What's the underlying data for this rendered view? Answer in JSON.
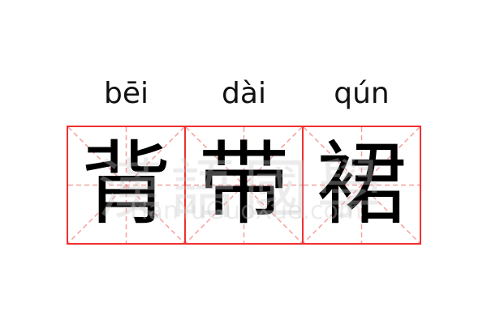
{
  "pinyin": [
    "bēi",
    "dài",
    "qún"
  ],
  "characters": [
    "背",
    "带",
    "裙"
  ],
  "watermark": {
    "chinese": "漢語國學",
    "url": "HanYuGuoXue.com"
  },
  "colors": {
    "grid_border": "#f03030",
    "guide": "#f5a0a0"
  }
}
